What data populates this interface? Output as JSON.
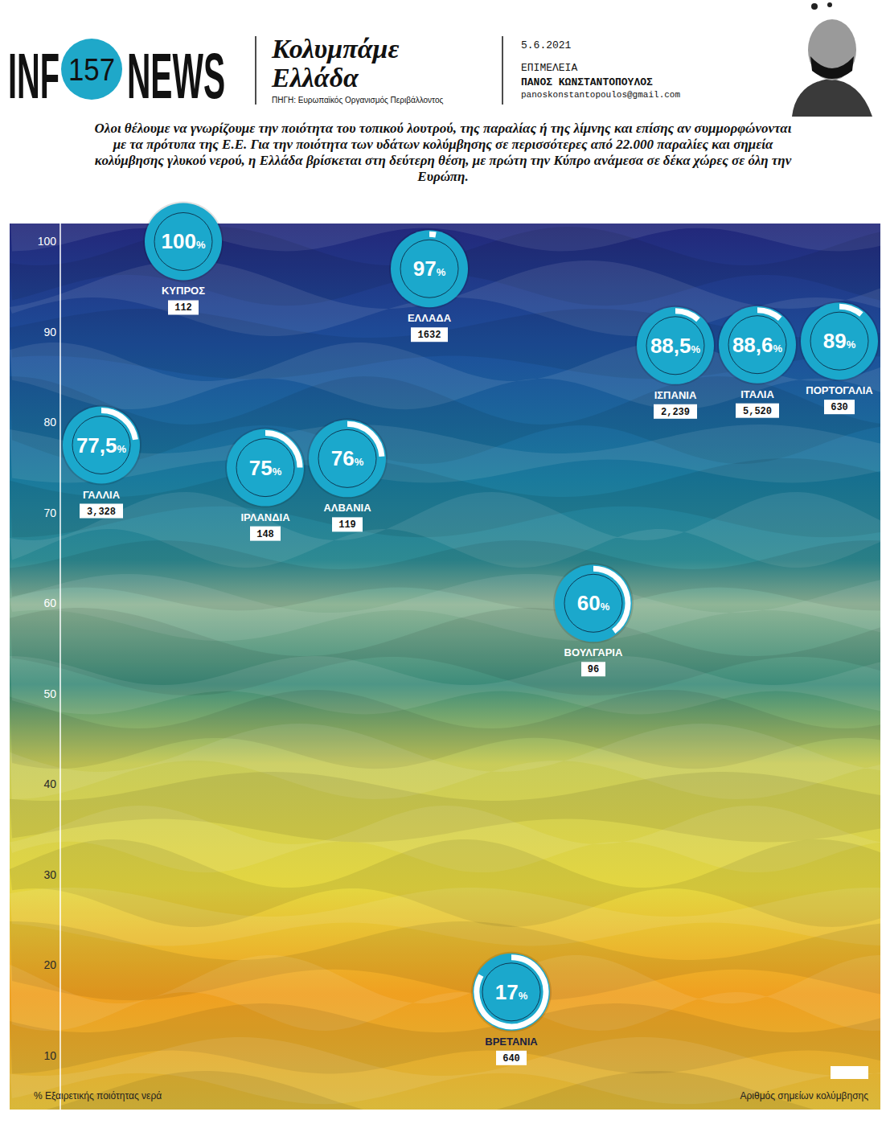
{
  "header": {
    "logo_left": "INF",
    "logo_number": "157",
    "logo_right": "NEWS",
    "source": "ΠΗΓΗ: Ευρωπαϊκός Οργανισμός Περιβάλλοντος",
    "date": "5.6.2021",
    "editor_label": "ΕΠΙΜΕΛΕΙΑ",
    "editor": "ΠΑΝΟΣ ΚΩΝΣΤΑΝΤΟΠΟΥΛΟΣ",
    "email": "panoskonstantopoulos@gmail.com"
  },
  "chart_data": {
    "type": "scatter",
    "title": "Κολυμπάμε Ελλάδα",
    "subtitle": "Ολοι θέλουμε να γνωρίζουμε την ποιότητα του τοπικού λουτρού, της παραλίας ή της λίμνης και επίσης αν συμμορφώνονται με τα πρότυπα της Ε.Ε. Για την ποιότητα των υδάτων κολύμβησης σε περισσότερες από 22.000 παραλίες και σημεία κολύμβησης γλυκού νερού, η Ελλάδα βρίσκεται στη δεύτερη θέση, με πρώτη την Κύπρο ανάμεσα σε δέκα χώρες σε όλη την Ευρώπη.",
    "categories": [
      "ΓΑΛΛΙΑ",
      "ΚΥΠΡΟΣ",
      "ΙΡΛΑΝΔΙΑ",
      "ΑΛΒΑΝΙΑ",
      "ΕΛΛΑΔΑ",
      "ΒΡΕΤΑΝΙΑ",
      "ΒΟΥΛΓΑΡΙΑ",
      "ΙΣΠΑΝΙΑ",
      "ΙΤΑΛΙΑ",
      "ΠΟΡΤΟΓΑΛΙΑ"
    ],
    "values": [
      77.5,
      100,
      75,
      76,
      97,
      17,
      60,
      88.5,
      88.6,
      89
    ],
    "value_labels": [
      "77,5%",
      "100%",
      "75%",
      "76%",
      "97%",
      "17%",
      "60%",
      "88,5%",
      "88,6%",
      "89%"
    ],
    "bathing_sites": [
      3328,
      112,
      148,
      119,
      1632,
      640,
      96,
      2239,
      5520,
      630
    ],
    "bathing_sites_labels": [
      "3,328",
      "112",
      "148",
      "119",
      "1632",
      "640",
      "96",
      "2,239",
      "5,520",
      "630"
    ],
    "bathing_sites_name": "Αριθμός σημείων κολύμβησης",
    "y_label": "% Εξαιρετικής ποιότητας νερά",
    "ylim": [
      4,
      102
    ],
    "yticks": [
      10,
      20,
      30,
      40,
      50,
      60,
      70,
      80,
      90,
      100
    ],
    "grid": false,
    "tick_labels": "y",
    "legend": "bottom-right",
    "data_labels": true,
    "color": "#1ba8cc"
  }
}
